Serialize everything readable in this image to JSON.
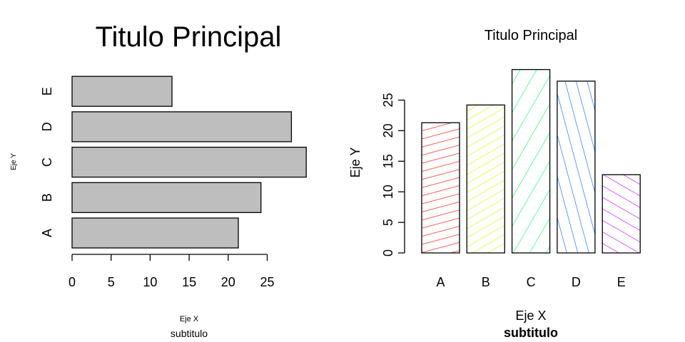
{
  "chart_data": [
    {
      "type": "bar",
      "orientation": "horizontal",
      "title": "Titulo Principal",
      "subtitle": "subtitulo",
      "xlabel": "Eje X",
      "ylabel": "Eje Y",
      "categories": [
        "A",
        "B",
        "C",
        "D",
        "E"
      ],
      "values": [
        21.3,
        24.2,
        30.0,
        28.1,
        12.8
      ],
      "xlim": [
        0,
        30
      ],
      "x_ticks": [
        "0",
        "5",
        "10",
        "15",
        "20",
        "25"
      ],
      "bar_color": "#bebebe",
      "grid": false
    },
    {
      "type": "bar",
      "orientation": "vertical",
      "title": "Titulo Principal",
      "subtitle": "subtitulo",
      "xlabel": "Eje X",
      "ylabel": "Eje Y",
      "categories": [
        "A",
        "B",
        "C",
        "D",
        "E"
      ],
      "values": [
        21.3,
        24.2,
        30.0,
        28.1,
        12.8
      ],
      "ylim": [
        0,
        30
      ],
      "y_ticks": [
        "0",
        "5",
        "10",
        "15",
        "20",
        "25"
      ],
      "hatch_colors": [
        "#ff0000",
        "#ccff00",
        "#00ff66",
        "#0066ff",
        "#cc00ff"
      ],
      "hatch_angles": [
        15,
        30,
        60,
        105,
        150
      ],
      "grid": false
    }
  ]
}
